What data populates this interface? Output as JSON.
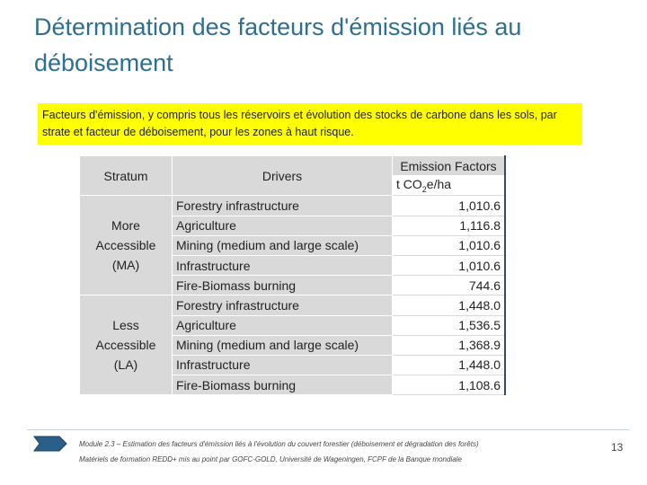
{
  "header": {
    "title": "Détermination des facteurs d'émission liés au déboisement"
  },
  "caption": "Facteurs d'émission, y compris tous les réservoirs et évolution des stocks de carbone dans les sols, par strate et facteur de déboisement, pour les zones à haut risque.",
  "table": {
    "headers": [
      "Stratum",
      "Drivers",
      "Emission Factors"
    ],
    "unit": [
      "t CO",
      "2",
      "e/ha"
    ],
    "groups": [
      {
        "stratum": [
          "More",
          "Accessible",
          "(MA)"
        ],
        "rows": [
          [
            "Forestry infrastructure",
            "1,010.6"
          ],
          [
            "Agriculture",
            "1,116.8"
          ],
          [
            "Mining (medium and large scale)",
            "1,010.6"
          ],
          [
            "Infrastructure",
            "1,010.6"
          ],
          [
            "Fire-Biomass burning",
            "744.6"
          ]
        ]
      },
      {
        "stratum": [
          "Less",
          "Accessible",
          "(LA)"
        ],
        "rows": [
          [
            "Forestry infrastructure",
            "1,448.0"
          ],
          [
            "Agriculture",
            "1,536.5"
          ],
          [
            "Mining (medium and large scale)",
            "1,368.9"
          ],
          [
            "Infrastructure",
            "1,448.0"
          ],
          [
            "Fire-Biomass burning",
            "1,108.6"
          ]
        ]
      }
    ]
  },
  "footer": {
    "module": "Module 2.3 – Estimation des facteurs d'émission liés à l'évolution du couvert forestier (déboisement et dégradation des forêts)",
    "materials": "Matériels de formation REDD+ mis au point par GOFC-GOLD, Université de Wageningen, FCPF de la Banque mondiale",
    "page": "13"
  }
}
